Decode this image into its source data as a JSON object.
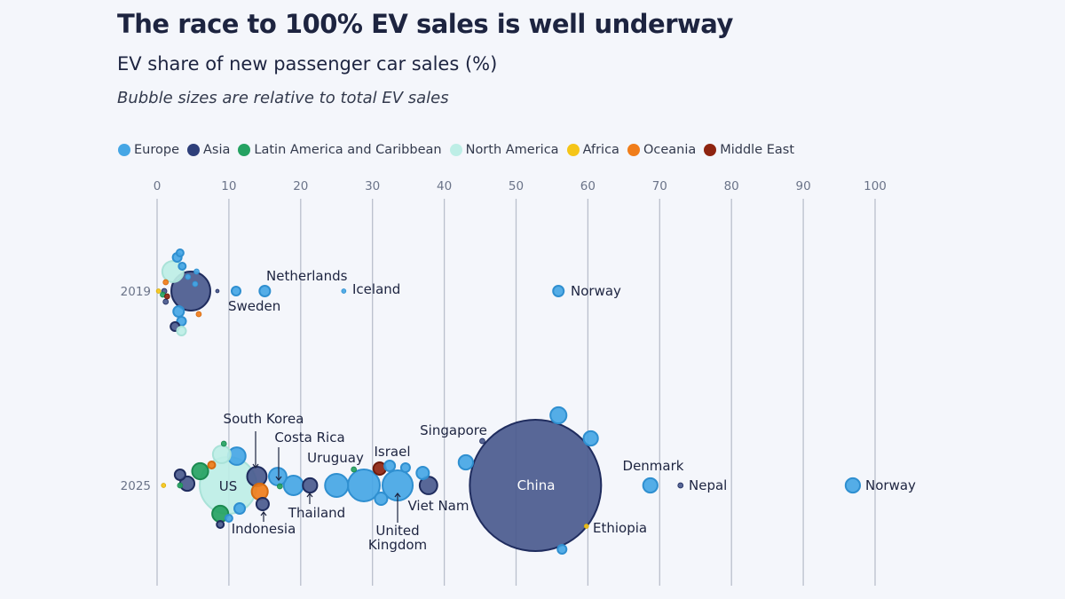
{
  "header": {
    "title": "The race to 100% EV sales is well underway",
    "subtitle": "EV share of new passenger car sales (%)",
    "note": "Bubble sizes are relative to total EV sales"
  },
  "legend": [
    {
      "label": "Europe",
      "color": "#45a6e5"
    },
    {
      "label": "Asia",
      "color": "#2e3f7a"
    },
    {
      "label": "Latin America and Caribbean",
      "color": "#25a262"
    },
    {
      "label": "North America",
      "color": "#bdeee6"
    },
    {
      "label": "Africa",
      "color": "#f5c518"
    },
    {
      "label": "Oceania",
      "color": "#f07d1a"
    },
    {
      "label": "Middle East",
      "color": "#8e2410"
    }
  ],
  "chart_data": {
    "type": "scatter",
    "title": "The race to 100% EV sales is well underway",
    "xlabel": "EV share of new passenger car sales (%)",
    "xlim": [
      0,
      100
    ],
    "xticks": [
      0,
      10,
      20,
      30,
      40,
      50,
      60,
      70,
      80,
      90,
      100
    ],
    "rows": [
      "2019",
      "2025"
    ],
    "grid": true,
    "legend_position": "top",
    "size_note": "Bubble sizes are relative to total EV sales",
    "points": [
      {
        "year": "2019",
        "region": "Asia",
        "share": 4.7,
        "size": 8.8,
        "label": ""
      },
      {
        "year": "2019",
        "region": "Europe",
        "share": 55.9,
        "size": 0.66,
        "label": "Norway"
      },
      {
        "year": "2019",
        "region": "Europe",
        "share": 26,
        "size": 0.11,
        "label": "Iceland"
      },
      {
        "year": "2019",
        "region": "Europe",
        "share": 15,
        "size": 0.66,
        "label": "Netherlands"
      },
      {
        "year": "2019",
        "region": "Europe",
        "share": 11,
        "size": 0.46,
        "label": "Sweden"
      },
      {
        "year": "2019",
        "region": "Asia",
        "share": 8.4,
        "size": 0.07,
        "label": ""
      },
      {
        "year": "2019",
        "region": "North America",
        "share": 2.2,
        "size": 2.6,
        "label": ""
      },
      {
        "year": "2019",
        "region": "Europe",
        "share": 3.2,
        "size": 0.29,
        "label": ""
      },
      {
        "year": "2019",
        "region": "Europe",
        "share": 2.8,
        "size": 0.46,
        "label": ""
      },
      {
        "year": "2019",
        "region": "Europe",
        "share": 3.5,
        "size": 0.29,
        "label": ""
      },
      {
        "year": "2019",
        "region": "Europe",
        "share": 4.3,
        "size": 0.16,
        "label": ""
      },
      {
        "year": "2019",
        "region": "Europe",
        "share": 5.5,
        "size": 0.16,
        "label": ""
      },
      {
        "year": "2019",
        "region": "Europe",
        "share": 3.0,
        "size": 0.66,
        "label": ""
      },
      {
        "year": "2019",
        "region": "Europe",
        "share": 3.4,
        "size": 0.46,
        "label": ""
      },
      {
        "year": "2019",
        "region": "Asia",
        "share": 2.5,
        "size": 0.46,
        "label": ""
      },
      {
        "year": "2019",
        "region": "North America",
        "share": 3.4,
        "size": 0.46,
        "label": ""
      },
      {
        "year": "2019",
        "region": "Oceania",
        "share": 5.8,
        "size": 0.16,
        "label": ""
      },
      {
        "year": "2019",
        "region": "Oceania",
        "share": 1.2,
        "size": 0.16,
        "label": ""
      },
      {
        "year": "2019",
        "region": "Asia",
        "share": 1.0,
        "size": 0.16,
        "label": ""
      },
      {
        "year": "2019",
        "region": "Latin America and Caribbean",
        "share": 0.8,
        "size": 0.16,
        "label": ""
      },
      {
        "year": "2019",
        "region": "Africa",
        "share": 0.2,
        "size": 0.11,
        "label": ""
      },
      {
        "year": "2019",
        "region": "Middle East",
        "share": 1.4,
        "size": 0.16,
        "label": ""
      },
      {
        "year": "2019",
        "region": "Asia",
        "share": 1.2,
        "size": 0.16,
        "label": ""
      },
      {
        "year": "2019",
        "region": "Europe",
        "share": 5.3,
        "size": 0.16,
        "label": ""
      },
      {
        "year": "2025",
        "region": "Asia",
        "share": 52.7,
        "size": 100,
        "label": "China"
      },
      {
        "year": "2025",
        "region": "North America",
        "share": 9.9,
        "size": 18.7,
        "label": "US"
      },
      {
        "year": "2025",
        "region": "Europe",
        "share": 96.9,
        "size": 1.2,
        "label": "Norway"
      },
      {
        "year": "2025",
        "region": "Asia",
        "share": 72.9,
        "size": 0.16,
        "label": "Nepal"
      },
      {
        "year": "2025",
        "region": "Europe",
        "share": 68.7,
        "size": 1.2,
        "label": "Denmark"
      },
      {
        "year": "2025",
        "region": "Africa",
        "share": 59.8,
        "size": 0.11,
        "label": "Ethiopia"
      },
      {
        "year": "2025",
        "region": "Europe",
        "share": 55.9,
        "size": 1.5,
        "label": ""
      },
      {
        "year": "2025",
        "region": "Europe",
        "share": 60.4,
        "size": 1.2,
        "label": ""
      },
      {
        "year": "2025",
        "region": "Europe",
        "share": 56.4,
        "size": 0.46,
        "label": ""
      },
      {
        "year": "2025",
        "region": "Europe",
        "share": 43,
        "size": 1.2,
        "label": ""
      },
      {
        "year": "2025",
        "region": "Asia",
        "share": 45.3,
        "size": 0.16,
        "label": "Singapore"
      },
      {
        "year": "2025",
        "region": "Asia",
        "share": 37.8,
        "size": 1.8,
        "label": "Viet Nam"
      },
      {
        "year": "2025",
        "region": "Europe",
        "share": 33.5,
        "size": 5.3,
        "label": "United Kingdom"
      },
      {
        "year": "2025",
        "region": "Europe",
        "share": 28.8,
        "size": 5.9,
        "label": ""
      },
      {
        "year": "2025",
        "region": "Europe",
        "share": 25,
        "size": 3.1,
        "label": ""
      },
      {
        "year": "2025",
        "region": "Middle East",
        "share": 31,
        "size": 0.9,
        "label": "Israel"
      },
      {
        "year": "2025",
        "region": "Latin America and Caribbean",
        "share": 27.4,
        "size": 0.16,
        "label": "Uruguay"
      },
      {
        "year": "2025",
        "region": "Asia",
        "share": 21.3,
        "size": 1.2,
        "label": "Thailand"
      },
      {
        "year": "2025",
        "region": "Europe",
        "share": 19,
        "size": 2.2,
        "label": ""
      },
      {
        "year": "2025",
        "region": "Europe",
        "share": 16.8,
        "size": 1.8,
        "label": ""
      },
      {
        "year": "2025",
        "region": "Latin America and Caribbean",
        "share": 17.1,
        "size": 0.16,
        "label": "Costa Rica"
      },
      {
        "year": "2025",
        "region": "Asia",
        "share": 13.9,
        "size": 2.2,
        "label": "South Korea"
      },
      {
        "year": "2025",
        "region": "Oceania",
        "share": 14.3,
        "size": 1.5,
        "label": ""
      },
      {
        "year": "2025",
        "region": "Asia",
        "share": 14.7,
        "size": 0.9,
        "label": "Indonesia"
      },
      {
        "year": "2025",
        "region": "Europe",
        "share": 11.1,
        "size": 1.8,
        "label": ""
      },
      {
        "year": "2025",
        "region": "North America",
        "share": 9.0,
        "size": 1.8,
        "label": ""
      },
      {
        "year": "2025",
        "region": "Latin America and Caribbean",
        "share": 9.3,
        "size": 0.16,
        "label": ""
      },
      {
        "year": "2025",
        "region": "Latin America and Caribbean",
        "share": 6.0,
        "size": 1.5,
        "label": ""
      },
      {
        "year": "2025",
        "region": "Oceania",
        "share": 7.6,
        "size": 0.29,
        "label": ""
      },
      {
        "year": "2025",
        "region": "Asia",
        "share": 3.2,
        "size": 0.66,
        "label": ""
      },
      {
        "year": "2025",
        "region": "Asia",
        "share": 4.2,
        "size": 1.2,
        "label": ""
      },
      {
        "year": "2025",
        "region": "Latin America and Caribbean",
        "share": 8.8,
        "size": 1.5,
        "label": ""
      },
      {
        "year": "2025",
        "region": "Asia",
        "share": 8.8,
        "size": 0.29,
        "label": ""
      },
      {
        "year": "2025",
        "region": "Europe",
        "share": 11.5,
        "size": 0.66,
        "label": ""
      },
      {
        "year": "2025",
        "region": "Europe",
        "share": 10.0,
        "size": 0.29,
        "label": ""
      },
      {
        "year": "2025",
        "region": "Africa",
        "share": 0.9,
        "size": 0.11,
        "label": ""
      },
      {
        "year": "2025",
        "region": "Europe",
        "share": 37,
        "size": 0.9,
        "label": ""
      },
      {
        "year": "2025",
        "region": "Europe",
        "share": 34.6,
        "size": 0.46,
        "label": ""
      },
      {
        "year": "2025",
        "region": "Europe",
        "share": 32.4,
        "size": 0.66,
        "label": ""
      },
      {
        "year": "2025",
        "region": "Europe",
        "share": 31.2,
        "size": 0.9,
        "label": ""
      },
      {
        "year": "2025",
        "region": "Latin America and Caribbean",
        "share": 3.2,
        "size": 0.16,
        "label": ""
      }
    ]
  }
}
